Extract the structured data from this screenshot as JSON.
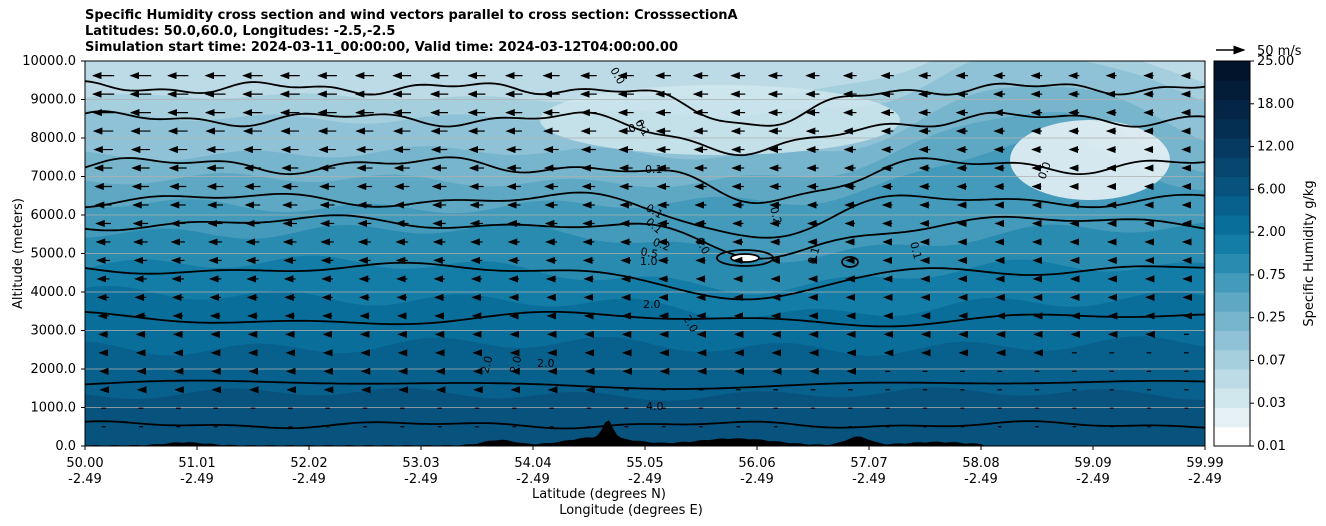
{
  "title_lines": [
    "Specific Humidity cross section and wind vectors parallel to cross section: CrosssectionA",
    "Latitudes: 50.0,60.0, Longitudes: -2.5,-2.5",
    "Simulation start time: 2024-03-11_00:00:00, Valid time: 2024-03-12T04:00:00.00"
  ],
  "colors": {
    "background": "#ffffff",
    "contour_line": "#000000",
    "terrain": "#000000",
    "grid": "#b0b0b0"
  },
  "chart_data": {
    "type": "heatmap",
    "title": "Specific Humidity cross section and wind vectors parallel to cross section: CrosssectionA",
    "ylabel": "Altitude (meters)",
    "xlabel_lines": [
      "Latitude (degrees N)",
      "Longitude (degrees E)"
    ],
    "ylim": [
      0,
      10000
    ],
    "y_ticks": [
      "0.0",
      "1000.0",
      "2000.0",
      "3000.0",
      "4000.0",
      "5000.0",
      "6000.0",
      "7000.0",
      "8000.0",
      "9000.0",
      "10000.0"
    ],
    "x_ticks": [
      {
        "lat": "50.00",
        "lon": "-2.49"
      },
      {
        "lat": "51.01",
        "lon": "-2.49"
      },
      {
        "lat": "52.02",
        "lon": "-2.49"
      },
      {
        "lat": "53.03",
        "lon": "-2.49"
      },
      {
        "lat": "54.04",
        "lon": "-2.49"
      },
      {
        "lat": "55.05",
        "lon": "-2.49"
      },
      {
        "lat": "56.06",
        "lon": "-2.49"
      },
      {
        "lat": "57.07",
        "lon": "-2.49"
      },
      {
        "lat": "58.08",
        "lon": "-2.49"
      },
      {
        "lat": "59.09",
        "lon": "-2.49"
      },
      {
        "lat": "59.99",
        "lon": "-2.49"
      }
    ],
    "grid": "horizontal",
    "colorbar": {
      "label": "Specific Humidity g/kg",
      "levels": [
        "0.01",
        "0.03",
        "0.07",
        "0.25",
        "0.75",
        "2.00",
        "6.00",
        "12.00",
        "18.00",
        "25.00"
      ],
      "colors": [
        "#ffffff",
        "#e6f1f5",
        "#d1e7ee",
        "#bddbe6",
        "#a6cfde",
        "#8fc2d6",
        "#77b5cd",
        "#5ea8c4",
        "#449aba",
        "#2a8bb0",
        "#137da7",
        "#0a6e9b",
        "#08608d",
        "#08527e",
        "#07466f",
        "#063a61",
        "#052f52",
        "#042545",
        "#031c38",
        "#02142c"
      ]
    },
    "contour_labels": [
      "0.0",
      "0.1",
      "0.1",
      "0.1",
      "0.2",
      "0.0",
      "0.1",
      "0.1",
      "0.0",
      "0.1",
      "0.1",
      "0.2",
      "0.5",
      "1.0",
      "2.0",
      "2.0",
      "2.0",
      "2.0",
      "2.0",
      "4.0"
    ],
    "wind_reference": {
      "label": "50 m/s",
      "direction": "parallel to cross section"
    },
    "wind_vectors": "predominantly southward (pointing left) in mid/upper levels, weak near surface"
  }
}
